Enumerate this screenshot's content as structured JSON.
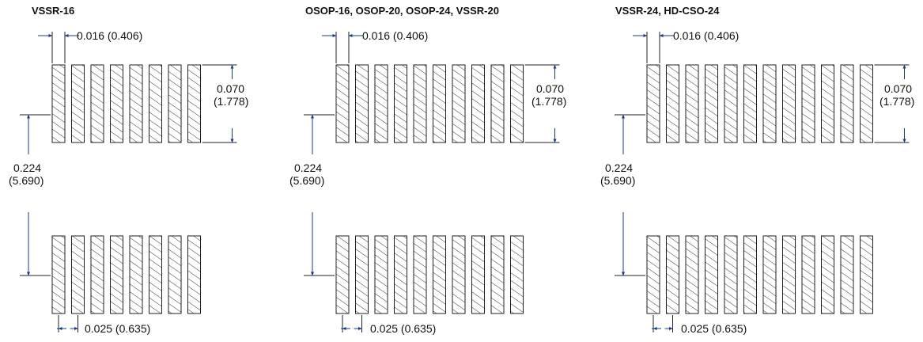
{
  "packages": [
    {
      "title": "VSSR-16",
      "pad_pitch_label": "0.016 (0.406)",
      "pad_length_label": [
        "0.070",
        "(1.778)"
      ],
      "row_spacing_label": [
        "0.224",
        "(5.690)"
      ],
      "lead_pitch_label": "0.025 (0.635)",
      "pads_per_row": 8
    },
    {
      "title": "OSOP-16, OSOP-20, OSOP-24, VSSR-20",
      "pad_pitch_label": "0.016 (0.406)",
      "pad_length_label": [
        "0.070",
        "(1.778)"
      ],
      "row_spacing_label": [
        "0.224",
        "(5.690)"
      ],
      "lead_pitch_label": "0.025 (0.635)",
      "pads_per_row": 10
    },
    {
      "title": "VSSR-24, HD-CSO-24",
      "pad_pitch_label": "0.016 (0.406)",
      "pad_length_label": [
        "0.070",
        "(1.778)"
      ],
      "row_spacing_label": [
        "0.224",
        "(5.690)"
      ],
      "lead_pitch_label": "0.025 (0.635)",
      "pads_per_row": 12
    }
  ],
  "colors": {
    "line": "#222222",
    "arrow": "#1a3a8a"
  }
}
